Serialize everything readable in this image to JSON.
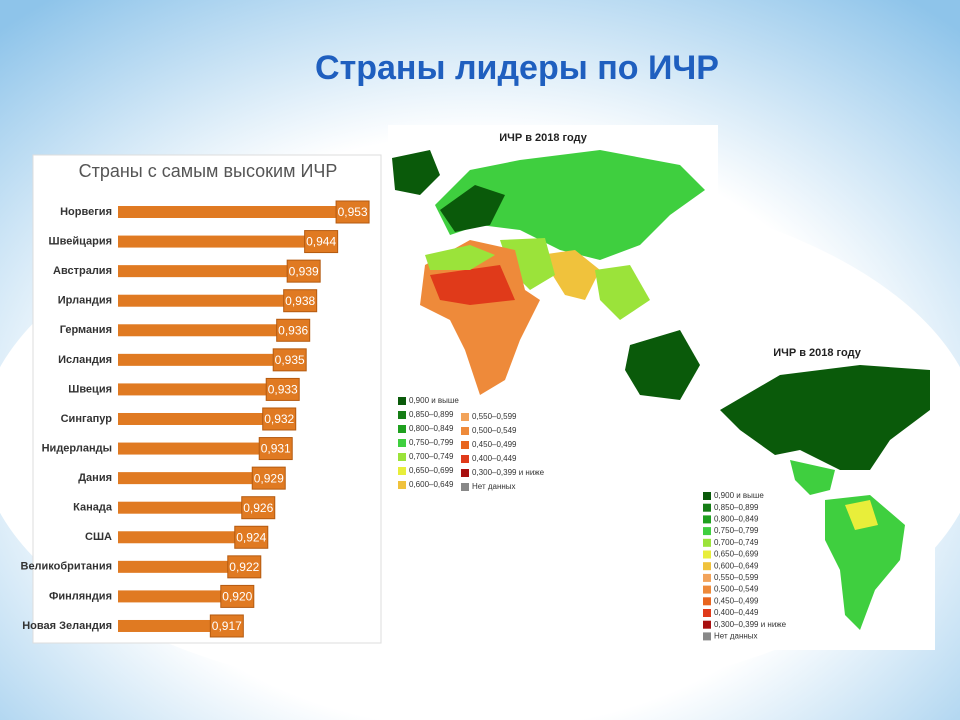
{
  "title": "Страны лидеры по ИЧР",
  "chart_data": {
    "type": "bar",
    "orientation": "horizontal",
    "title": "Страны с самым высоким ИЧР",
    "categories": [
      "Норвегия",
      "Швейцария",
      "Австралия",
      "Ирландия",
      "Германия",
      "Исландия",
      "Швеция",
      "Сингапур",
      "Нидерланды",
      "Дания",
      "Канада",
      "США",
      "Великобритания",
      "Финляндия",
      "Новая Зеландия"
    ],
    "values": [
      0.953,
      0.944,
      0.939,
      0.938,
      0.936,
      0.935,
      0.933,
      0.932,
      0.931,
      0.929,
      0.926,
      0.924,
      0.922,
      0.92,
      0.917
    ],
    "value_labels": [
      "0,953",
      "0,944",
      "0,939",
      "0,938",
      "0,936",
      "0,935",
      "0,933",
      "0,932",
      "0,931",
      "0,929",
      "0,926",
      "0,924",
      "0,922",
      "0,920",
      "0,917"
    ],
    "color": "#e07a22",
    "xlim": [
      0.89,
      0.965
    ]
  },
  "maps": [
    {
      "title": "ИЧР в 2018 году",
      "legend": [
        {
          "label": "0,900 и выше",
          "color": "#0a5a0a"
        },
        {
          "label": "0,850–0,899",
          "color": "#167d16"
        },
        {
          "label": "0,800–0,849",
          "color": "#1fa01f"
        },
        {
          "label": "0,750–0,799",
          "color": "#3fcf3f"
        },
        {
          "label": "0,700–0,749",
          "color": "#9be33a"
        },
        {
          "label": "0,650–0,699",
          "color": "#e8ee3a"
        },
        {
          "label": "0,600–0,649",
          "color": "#f0c23c"
        },
        {
          "label": "0,550–0,599",
          "color": "#f2a35a"
        },
        {
          "label": "0,500–0,549",
          "color": "#ee8a3a"
        },
        {
          "label": "0,450–0,499",
          "color": "#e8651e"
        },
        {
          "label": "0,400–0,449",
          "color": "#e03a1a"
        },
        {
          "label": "0,300–0,399 и ниже",
          "color": "#a80f0f"
        },
        {
          "label": "Нет данных",
          "color": "#888888"
        }
      ]
    },
    {
      "title": "ИЧР в 2018 году",
      "legend": [
        {
          "label": "0,900 и выше",
          "color": "#0a5a0a"
        },
        {
          "label": "0,850–0,899",
          "color": "#167d16"
        },
        {
          "label": "0,800–0,849",
          "color": "#1fa01f"
        },
        {
          "label": "0,750–0,799",
          "color": "#3fcf3f"
        },
        {
          "label": "0,700–0,749",
          "color": "#9be33a"
        },
        {
          "label": "0,650–0,699",
          "color": "#e8ee3a"
        },
        {
          "label": "0,600–0,649",
          "color": "#f0c23c"
        },
        {
          "label": "0,550–0,599",
          "color": "#f2a35a"
        },
        {
          "label": "0,500–0,549",
          "color": "#ee8a3a"
        },
        {
          "label": "0,450–0,499",
          "color": "#e8651e"
        },
        {
          "label": "0,400–0,449",
          "color": "#e03a1a"
        },
        {
          "label": "0,300–0,399 и ниже",
          "color": "#a80f0f"
        },
        {
          "label": "Нет данных",
          "color": "#888888"
        }
      ]
    }
  ]
}
